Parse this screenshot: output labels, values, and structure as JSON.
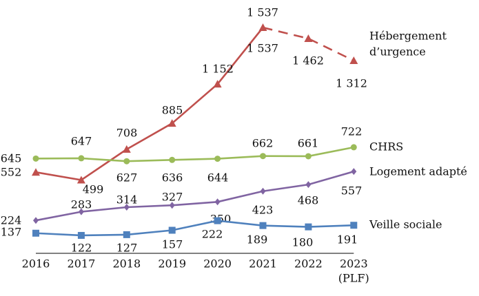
{
  "chart_data": {
    "type": "line",
    "title": "",
    "xlabel": "",
    "ylabel": "",
    "categories": [
      "2016",
      "2017",
      "2018",
      "2019",
      "2020",
      "2021",
      "2022",
      "2023"
    ],
    "category_sublabels": [
      "",
      "",
      "",
      "",
      "",
      "",
      "",
      "(PLF)"
    ],
    "ylim": [
      0,
      1537
    ],
    "grid": false,
    "legend": "right, labels at line ends",
    "series": [
      {
        "name": "Hébergement d’urgence",
        "name_lines": [
          "Hébergement",
          "d’urgence"
        ],
        "color": "#C0504D",
        "marker": "triangle",
        "values": [
          552,
          499,
          708,
          885,
          1152,
          1537,
          1462,
          1312
        ],
        "labels": [
          "552",
          "499",
          "708",
          "885",
          "1 152",
          "1 537",
          "1 462",
          "1 312"
        ],
        "extra_label": "1 537",
        "dashed_from": "2021"
      },
      {
        "name": "CHRS",
        "name_lines": [
          "CHRS"
        ],
        "color": "#9BBB59",
        "marker": "circle",
        "values": [
          645,
          647,
          627,
          636,
          644,
          662,
          661,
          722
        ],
        "labels": [
          "645",
          "647",
          "627",
          "636",
          "644",
          "662",
          "661",
          "722"
        ]
      },
      {
        "name": "Logement adapté",
        "name_lines": [
          "Logement adapté"
        ],
        "color": "#8064A2",
        "marker": "diamond",
        "values": [
          224,
          283,
          314,
          327,
          350,
          423,
          468,
          557
        ],
        "labels": [
          "224",
          "283",
          "314",
          "327",
          "350",
          "423",
          "468",
          "557"
        ]
      },
      {
        "name": "Veille sociale",
        "name_lines": [
          "Veille sociale"
        ],
        "color": "#4F81BD",
        "marker": "square",
        "values": [
          137,
          122,
          127,
          157,
          222,
          189,
          180,
          191
        ],
        "labels": [
          "137",
          "122",
          "127",
          "157",
          "222",
          "189",
          "180",
          "191"
        ]
      }
    ]
  }
}
